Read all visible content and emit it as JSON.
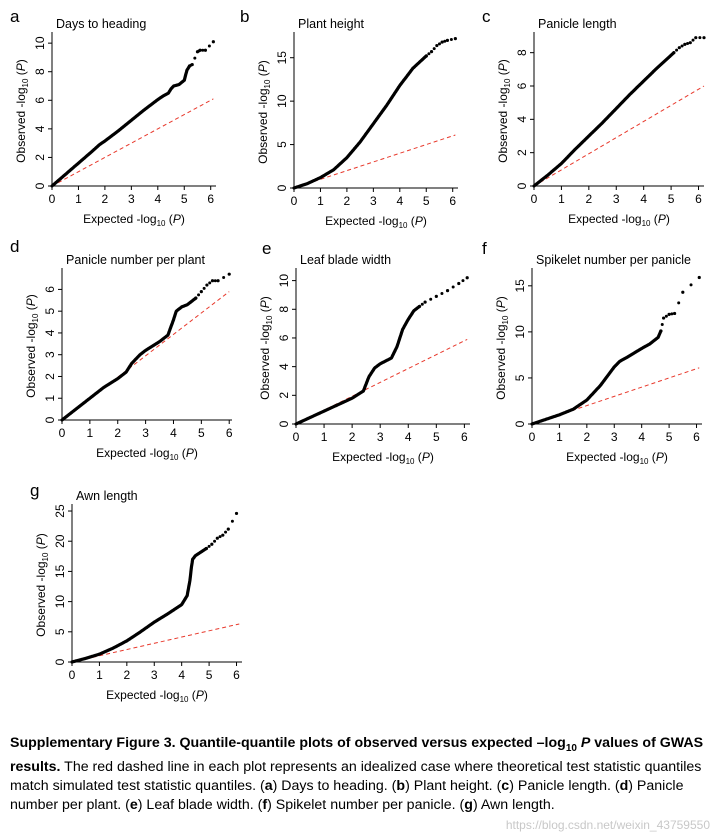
{
  "chart_data": [
    {
      "type": "scatter",
      "letter": "a",
      "title": "Days to heading",
      "ylabel_prefix": "Observed -log",
      "xlabel_prefix": "Expected -log",
      "sub": "10",
      "label_suffix": " (P)",
      "xlim": [
        0,
        6.2
      ],
      "ylim": [
        0,
        10.5
      ],
      "xticks": [
        0,
        1,
        2,
        3,
        4,
        5,
        6
      ],
      "yticks": [
        0,
        2,
        4,
        6,
        8,
        10
      ],
      "series": [
        {
          "name": "observed",
          "x": [
            0,
            0.5,
            1,
            1.5,
            1.8,
            2,
            2.5,
            3,
            3.5,
            4,
            4.2,
            4.4,
            4.5,
            4.6,
            4.8,
            5,
            5.1,
            5.2,
            5.3,
            5.5,
            5.6,
            5.8,
            6.1
          ],
          "y": [
            0,
            0.8,
            1.6,
            2.4,
            2.9,
            3.15,
            3.85,
            4.6,
            5.35,
            6.05,
            6.3,
            6.5,
            6.8,
            7.0,
            7.1,
            7.4,
            8.1,
            8.4,
            8.5,
            9.4,
            9.5,
            9.5,
            10.1
          ]
        },
        {
          "name": "expected",
          "x": [
            0,
            6.1
          ],
          "y": [
            0,
            6.1
          ]
        }
      ]
    },
    {
      "type": "scatter",
      "letter": "b",
      "title": "Plant height",
      "ylabel_prefix": "Observed -log",
      "xlabel_prefix": "Expected -log",
      "sub": "10",
      "label_suffix": " (P)",
      "xlim": [
        0,
        6.2
      ],
      "ylim": [
        0,
        17.5
      ],
      "xticks": [
        0,
        1,
        2,
        3,
        4,
        5,
        6
      ],
      "yticks": [
        0,
        5,
        10,
        15
      ],
      "series": [
        {
          "name": "observed",
          "x": [
            0,
            0.5,
            1,
            1.5,
            2,
            2.5,
            3,
            3.5,
            4,
            4.5,
            5,
            5.2,
            5.4,
            5.6,
            5.8,
            6.1
          ],
          "y": [
            0,
            0.5,
            1.2,
            2.1,
            3.5,
            5.3,
            7.4,
            9.5,
            11.8,
            13.8,
            15.2,
            15.7,
            16.4,
            16.8,
            17.0,
            17.2
          ]
        },
        {
          "name": "expected",
          "x": [
            0,
            6.1
          ],
          "y": [
            0,
            6.1
          ]
        }
      ]
    },
    {
      "type": "scatter",
      "letter": "c",
      "title": "Panicle length",
      "ylabel_prefix": "Observed -log",
      "xlabel_prefix": "Expected -log",
      "sub": "10",
      "label_suffix": " (P)",
      "xlim": [
        0,
        6.2
      ],
      "ylim": [
        0,
        9
      ],
      "xticks": [
        0,
        1,
        2,
        3,
        4,
        5,
        6
      ],
      "yticks": [
        0,
        2,
        4,
        6,
        8
      ],
      "series": [
        {
          "name": "observed",
          "x": [
            0,
            0.5,
            1,
            1.5,
            2,
            2.5,
            3,
            3.5,
            4,
            4.5,
            4.7,
            4.9,
            5.1,
            5.3,
            5.5,
            5.7,
            5.9,
            6.2
          ],
          "y": [
            0,
            0.65,
            1.35,
            2.2,
            3.0,
            3.8,
            4.65,
            5.5,
            6.3,
            7.1,
            7.4,
            7.7,
            8.0,
            8.3,
            8.5,
            8.6,
            8.9,
            8.9
          ]
        },
        {
          "name": "expected",
          "x": [
            0,
            6.2
          ],
          "y": [
            0,
            6.0
          ]
        }
      ]
    },
    {
      "type": "scatter",
      "letter": "d",
      "title": "Panicle number per plant",
      "ylabel_prefix": "Observed -log",
      "xlabel_prefix": "Expected -log",
      "sub": "10",
      "label_suffix": " (P)",
      "xlim": [
        0,
        6.1
      ],
      "ylim": [
        0,
        6.8
      ],
      "xticks": [
        0,
        1,
        2,
        3,
        4,
        5,
        6
      ],
      "yticks": [
        0,
        1,
        2,
        3,
        4,
        5,
        6
      ],
      "series": [
        {
          "name": "observed",
          "x": [
            0,
            0.5,
            1,
            1.5,
            2,
            2.3,
            2.5,
            2.8,
            3,
            3.5,
            3.8,
            4,
            4.1,
            4.3,
            4.5,
            4.8,
            5,
            5.2,
            5.4,
            5.6,
            6.0
          ],
          "y": [
            0,
            0.5,
            1.0,
            1.5,
            1.9,
            2.2,
            2.6,
            3.0,
            3.2,
            3.6,
            3.9,
            4.6,
            5.0,
            5.2,
            5.3,
            5.6,
            5.9,
            6.2,
            6.4,
            6.4,
            6.7
          ]
        },
        {
          "name": "expected",
          "x": [
            0,
            6.0
          ],
          "y": [
            0,
            5.9
          ]
        }
      ]
    },
    {
      "type": "scatter",
      "letter": "e",
      "title": "Leaf blade width",
      "ylabel_prefix": "Observed -log",
      "xlabel_prefix": "Expected -log",
      "sub": "10",
      "label_suffix": " (P)",
      "xlim": [
        0,
        6.2
      ],
      "ylim": [
        0,
        10.6
      ],
      "xticks": [
        0,
        1,
        2,
        3,
        4,
        5,
        6
      ],
      "yticks": [
        0,
        2,
        4,
        6,
        8,
        10
      ],
      "series": [
        {
          "name": "observed",
          "x": [
            0,
            0.5,
            1,
            1.5,
            2,
            2.4,
            2.6,
            2.8,
            3,
            3.2,
            3.4,
            3.6,
            3.8,
            4,
            4.2,
            4.4,
            4.6,
            5,
            5.4,
            5.8,
            6.1
          ],
          "y": [
            0,
            0.45,
            0.9,
            1.35,
            1.8,
            2.3,
            3.3,
            3.9,
            4.2,
            4.4,
            4.6,
            5.4,
            6.6,
            7.3,
            7.9,
            8.2,
            8.5,
            8.9,
            9.3,
            9.8,
            10.2
          ]
        },
        {
          "name": "expected",
          "x": [
            0,
            6.1
          ],
          "y": [
            0,
            5.9
          ]
        }
      ]
    },
    {
      "type": "scatter",
      "letter": "f",
      "title": "Spikelet number per panicle",
      "ylabel_prefix": "Observed -log",
      "xlabel_prefix": "Expected -log",
      "sub": "10",
      "label_suffix": " (P)",
      "xlim": [
        0,
        6.2
      ],
      "ylim": [
        0,
        16.5
      ],
      "xticks": [
        0,
        1,
        2,
        3,
        4,
        5,
        6
      ],
      "yticks": [
        0,
        5,
        10,
        15
      ],
      "series": [
        {
          "name": "observed",
          "x": [
            0,
            0.5,
            1,
            1.5,
            2,
            2.5,
            3,
            3.2,
            3.5,
            4,
            4.3,
            4.6,
            4.7,
            4.8,
            5,
            5.2,
            5.5,
            6.1
          ],
          "y": [
            0,
            0.5,
            1.0,
            1.6,
            2.6,
            4.2,
            6.2,
            6.8,
            7.3,
            8.2,
            8.7,
            9.4,
            10.1,
            11.5,
            11.9,
            12.0,
            14.3,
            15.9
          ]
        },
        {
          "name": "expected",
          "x": [
            0,
            6.1
          ],
          "y": [
            0,
            6.1
          ]
        }
      ]
    },
    {
      "type": "scatter",
      "letter": "g",
      "title": "Awn length",
      "ylabel_prefix": "Observed -log",
      "xlabel_prefix": "Expected -log",
      "sub": "10",
      "label_suffix": " (P)",
      "xlim": [
        0,
        6.2
      ],
      "ylim": [
        0,
        25.5
      ],
      "xticks": [
        0,
        1,
        2,
        3,
        4,
        5,
        6
      ],
      "yticks": [
        0,
        5,
        10,
        15,
        20,
        25
      ],
      "series": [
        {
          "name": "observed",
          "x": [
            0,
            0.5,
            1,
            1.5,
            2,
            2.5,
            3,
            3.5,
            4,
            4.2,
            4.3,
            4.35,
            4.4,
            4.5,
            4.7,
            4.9,
            5.1,
            5.3,
            5.5,
            5.7,
            6.0
          ],
          "y": [
            0,
            0.6,
            1.3,
            2.3,
            3.5,
            5.0,
            6.6,
            8.0,
            9.5,
            11.0,
            13.5,
            15.5,
            17.0,
            17.6,
            18.2,
            18.8,
            19.5,
            20.5,
            21.0,
            22.0,
            24.6
          ]
        },
        {
          "name": "expected",
          "x": [
            0,
            6.1
          ],
          "y": [
            0,
            6.3
          ]
        }
      ]
    }
  ],
  "caption": {
    "bold": "Supplementary Figure 3. Quantile-quantile plots of observed versus expected –log",
    "bold_sub": "10",
    "bold_p": " P",
    "bold_rest": " values of GWAS results.",
    "parts": [
      {
        "t": " The red dashed line in each plot represents an idealized case where theoretical test statistic quantiles match simulated test statistic quantiles. (",
        "b": false
      },
      {
        "t": "a",
        "b": true
      },
      {
        "t": ") Days to heading. (",
        "b": false
      },
      {
        "t": "b",
        "b": true
      },
      {
        "t": ") Plant height. (",
        "b": false
      },
      {
        "t": "c",
        "b": true
      },
      {
        "t": ") Panicle length. (",
        "b": false
      },
      {
        "t": "d",
        "b": true
      },
      {
        "t": ") Panicle number per plant. (",
        "b": false
      },
      {
        "t": "e",
        "b": true
      },
      {
        "t": ") Leaf blade width. (",
        "b": false
      },
      {
        "t": "f",
        "b": true
      },
      {
        "t": ") Spikelet number per panicle. (",
        "b": false
      },
      {
        "t": "g",
        "b": true
      },
      {
        "t": ") Awn length.",
        "b": false
      }
    ]
  },
  "watermark": "https://blog.csdn.net/weixin_43759550",
  "colors": {
    "points": "#000000",
    "expected_line": "#e8392c",
    "axis": "#000000"
  }
}
